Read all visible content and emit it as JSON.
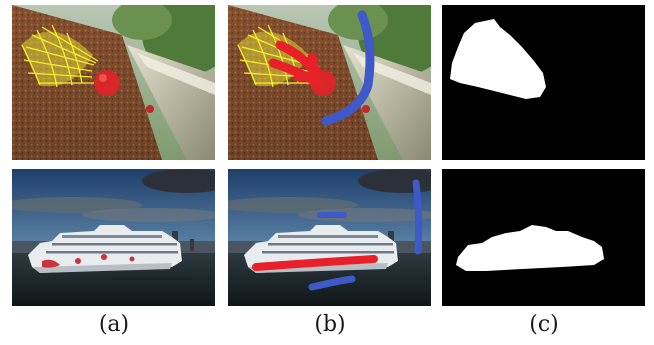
{
  "figure": {
    "captions": [
      "(a)",
      "(b)",
      "(c)"
    ],
    "rows": [
      {
        "subject": "shuttlecock",
        "stroke_colors": {
          "foreground": "#e8202a",
          "background": "#3f5ac8"
        }
      },
      {
        "subject": "cruise-ship",
        "stroke_colors": {
          "foreground": "#e8202a",
          "background": "#3f5ac8"
        }
      }
    ],
    "mask_colors": {
      "object": "#ffffff",
      "background": "#000000"
    }
  }
}
